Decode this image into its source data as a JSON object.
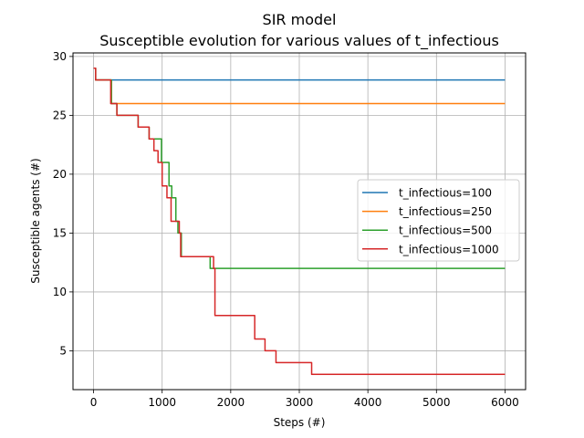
{
  "chart_data": {
    "type": "line",
    "title": "SIR model",
    "subtitle": "Susceptible evolution for various values of t_infectious",
    "xlabel": "Steps (#)",
    "ylabel": "Susceptible agents (#)",
    "xlim": [
      -300,
      6300
    ],
    "ylim": [
      1.7,
      30.3
    ],
    "xticks": [
      0,
      1000,
      2000,
      3000,
      4000,
      5000,
      6000
    ],
    "yticks": [
      5,
      10,
      15,
      20,
      25,
      30
    ],
    "grid": true,
    "legend_position": "center-right",
    "series": [
      {
        "name": "t_infectious=100",
        "color": "#1f77b4",
        "points": [
          [
            0,
            29
          ],
          [
            30,
            29
          ],
          [
            30,
            28
          ],
          [
            6000,
            28
          ]
        ]
      },
      {
        "name": "t_infectious=250",
        "color": "#ff7f0e",
        "points": [
          [
            0,
            29
          ],
          [
            30,
            29
          ],
          [
            30,
            28
          ],
          [
            260,
            28
          ],
          [
            260,
            26
          ],
          [
            6000,
            26
          ]
        ]
      },
      {
        "name": "t_infectious=500",
        "color": "#2ca02c",
        "points": [
          [
            0,
            29
          ],
          [
            30,
            29
          ],
          [
            30,
            28
          ],
          [
            260,
            28
          ],
          [
            260,
            26
          ],
          [
            340,
            26
          ],
          [
            340,
            25
          ],
          [
            650,
            25
          ],
          [
            650,
            24
          ],
          [
            810,
            24
          ],
          [
            810,
            23
          ],
          [
            990,
            23
          ],
          [
            990,
            21
          ],
          [
            1100,
            21
          ],
          [
            1100,
            19
          ],
          [
            1140,
            19
          ],
          [
            1140,
            18
          ],
          [
            1200,
            18
          ],
          [
            1200,
            16
          ],
          [
            1230,
            16
          ],
          [
            1230,
            15
          ],
          [
            1280,
            15
          ],
          [
            1280,
            13
          ],
          [
            1700,
            13
          ],
          [
            1700,
            12
          ],
          [
            6000,
            12
          ]
        ]
      },
      {
        "name": "t_infectious=1000",
        "color": "#d62728",
        "points": [
          [
            0,
            29
          ],
          [
            30,
            29
          ],
          [
            30,
            28
          ],
          [
            250,
            28
          ],
          [
            250,
            26
          ],
          [
            340,
            26
          ],
          [
            340,
            25
          ],
          [
            650,
            25
          ],
          [
            650,
            24
          ],
          [
            810,
            24
          ],
          [
            810,
            23
          ],
          [
            880,
            23
          ],
          [
            880,
            22
          ],
          [
            940,
            22
          ],
          [
            940,
            21
          ],
          [
            1000,
            21
          ],
          [
            1000,
            19
          ],
          [
            1070,
            19
          ],
          [
            1070,
            18
          ],
          [
            1130,
            18
          ],
          [
            1130,
            16
          ],
          [
            1250,
            16
          ],
          [
            1250,
            15
          ],
          [
            1270,
            15
          ],
          [
            1270,
            13
          ],
          [
            1750,
            13
          ],
          [
            1750,
            12
          ],
          [
            1770,
            12
          ],
          [
            1770,
            8
          ],
          [
            2350,
            8
          ],
          [
            2350,
            6
          ],
          [
            2500,
            6
          ],
          [
            2500,
            5
          ],
          [
            2660,
            5
          ],
          [
            2660,
            4
          ],
          [
            3180,
            4
          ],
          [
            3180,
            3
          ],
          [
            6000,
            3
          ]
        ]
      }
    ]
  }
}
